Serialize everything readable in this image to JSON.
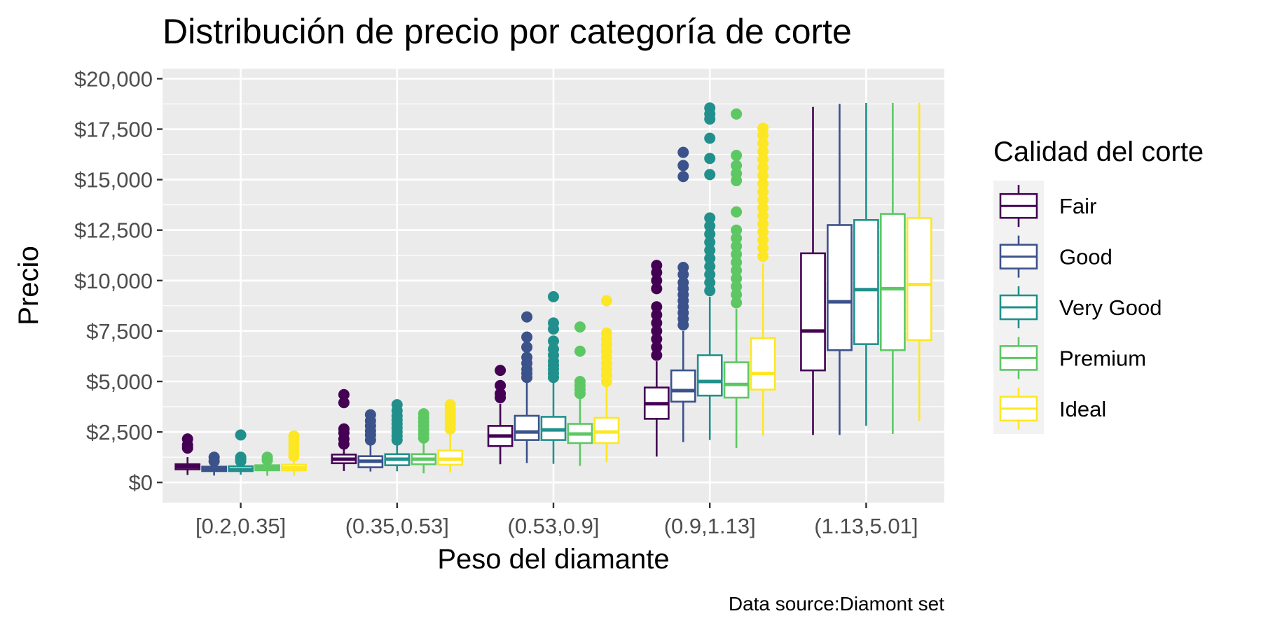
{
  "chart_data": {
    "type": "boxplot",
    "title": "Distribución de precio por categoría de corte",
    "xlabel": "Peso del diamante",
    "ylabel": "Precio",
    "caption": "Data source:Diamont set",
    "legend_title": "Calidad del corte",
    "legend_position": "right",
    "grid": true,
    "ylim": [
      -1000,
      20500
    ],
    "y_ticks": [
      0,
      2500,
      5000,
      7500,
      10000,
      12500,
      15000,
      17500,
      20000
    ],
    "y_tick_labels": [
      "$0",
      "$2,500",
      "$5,000",
      "$7,500",
      "$10,000",
      "$12,500",
      "$15,000",
      "$17,500",
      "$20,000"
    ],
    "categories": [
      "[0.2,0.35]",
      "(0.35,0.53]",
      "(0.53,0.9]",
      "(0.9,1.13]",
      "(1.13,5.01]"
    ],
    "series": [
      {
        "name": "Fair",
        "color": "#440154",
        "boxes": [
          {
            "min": 370,
            "q1": 650,
            "median": 780,
            "q3": 900,
            "max": 1250,
            "outliers": [
              1700,
              1850,
              2150
            ]
          },
          {
            "min": 560,
            "q1": 950,
            "median": 1150,
            "q3": 1380,
            "max": 1800,
            "outliers": [
              1900,
              2150,
              2450,
              2650,
              3950,
              4350
            ]
          },
          {
            "min": 900,
            "q1": 1800,
            "median": 2300,
            "q3": 2800,
            "max": 3900,
            "outliers": [
              4200,
              4400,
              4800,
              5550
            ]
          },
          {
            "min": 1280,
            "q1": 3150,
            "median": 3900,
            "q3": 4700,
            "max": 6000,
            "outliers": [
              6300,
              6700,
              7100,
              7500,
              7900,
              8300,
              8700,
              9600,
              10000,
              10400,
              10750
            ]
          },
          {
            "min": 2350,
            "q1": 5550,
            "median": 7500,
            "q3": 11350,
            "max": 18600,
            "outliers": []
          }
        ]
      },
      {
        "name": "Good",
        "color": "#3b528b",
        "boxes": [
          {
            "min": 340,
            "q1": 560,
            "median": 650,
            "q3": 780,
            "max": 1000,
            "outliers": [
              1050,
              1250
            ]
          },
          {
            "min": 540,
            "q1": 750,
            "median": 1050,
            "q3": 1300,
            "max": 2000,
            "outliers": [
              2100,
              2350,
              2550,
              2800,
              3050,
              3350
            ]
          },
          {
            "min": 960,
            "q1": 2100,
            "median": 2500,
            "q3": 3300,
            "max": 5000,
            "outliers": [
              5200,
              5400,
              5600,
              5900,
              6200,
              6700,
              7200,
              8200
            ]
          },
          {
            "min": 2000,
            "q1": 4000,
            "median": 4550,
            "q3": 5550,
            "max": 7500,
            "outliers": [
              7800,
              8100,
              8400,
              8700,
              9000,
              9300,
              9600,
              9900,
              10300,
              10650,
              15150,
              15700,
              16350
            ]
          },
          {
            "min": 2350,
            "q1": 6550,
            "median": 8950,
            "q3": 12750,
            "max": 18750,
            "outliers": []
          }
        ]
      },
      {
        "name": "Very Good",
        "color": "#21908c",
        "boxes": [
          {
            "min": 380,
            "q1": 560,
            "median": 640,
            "q3": 800,
            "max": 1000,
            "outliers": [
              1050,
              1150,
              1250,
              2350
            ]
          },
          {
            "min": 550,
            "q1": 850,
            "median": 1150,
            "q3": 1400,
            "max": 2000,
            "outliers": [
              2100,
              2300,
              2500,
              2700,
              2900,
              3100,
              3300,
              3550,
              3850
            ]
          },
          {
            "min": 920,
            "q1": 2100,
            "median": 2600,
            "q3": 3250,
            "max": 5000,
            "outliers": [
              5200,
              5400,
              5600,
              5800,
              6000,
              6300,
              6600,
              7000,
              7600,
              7900,
              9200
            ]
          },
          {
            "min": 2100,
            "q1": 4300,
            "median": 5000,
            "q3": 6300,
            "max": 9200,
            "outliers": [
              9500,
              9900,
              10300,
              10700,
              11100,
              11500,
              11900,
              12300,
              12700,
              13100,
              15250,
              16050,
              17050,
              18000,
              18250,
              18550
            ]
          },
          {
            "min": 2800,
            "q1": 6850,
            "median": 9550,
            "q3": 13000,
            "max": 18800,
            "outliers": []
          }
        ]
      },
      {
        "name": "Premium",
        "color": "#5dc863",
        "boxes": [
          {
            "min": 330,
            "q1": 600,
            "median": 720,
            "q3": 850,
            "max": 1000,
            "outliers": [
              1100,
              1250
            ]
          },
          {
            "min": 450,
            "q1": 900,
            "median": 1150,
            "q3": 1400,
            "max": 2100,
            "outliers": [
              2200,
              2400,
              2600,
              2800,
              3000,
              3200,
              3400
            ]
          },
          {
            "min": 820,
            "q1": 1950,
            "median": 2400,
            "q3": 2900,
            "max": 4250,
            "outliers": [
              4400,
              4600,
              4800,
              5000,
              6500,
              7700
            ]
          },
          {
            "min": 1700,
            "q1": 4200,
            "median": 4850,
            "q3": 5950,
            "max": 8600,
            "outliers": [
              8900,
              9300,
              9700,
              10100,
              10500,
              10900,
              11300,
              11700,
              12100,
              12500,
              13400,
              14950,
              15300,
              15700,
              16200,
              18250
            ]
          },
          {
            "min": 2400,
            "q1": 6550,
            "median": 9600,
            "q3": 13300,
            "max": 18800,
            "outliers": []
          }
        ]
      },
      {
        "name": "Ideal",
        "color": "#fde725",
        "boxes": [
          {
            "min": 330,
            "q1": 600,
            "median": 720,
            "q3": 880,
            "max": 1200,
            "outliers": [
              1300,
              1500,
              1700,
              1900,
              2100,
              2300
            ]
          },
          {
            "min": 500,
            "q1": 880,
            "median": 1150,
            "q3": 1580,
            "max": 2550,
            "outliers": [
              2650,
              2850,
              3050,
              3250,
              3450,
              3650,
              3850
            ]
          },
          {
            "min": 1000,
            "q1": 1950,
            "median": 2500,
            "q3": 3200,
            "max": 4850,
            "outliers": [
              5000,
              5300,
              5600,
              5900,
              6200,
              6500,
              6800,
              7100,
              7400,
              9000
            ]
          },
          {
            "min": 2300,
            "q1": 4600,
            "median": 5400,
            "q3": 7150,
            "max": 10850,
            "outliers": [
              11200,
              11600,
              12000,
              12400,
              12800,
              13200,
              13600,
              14000,
              14400,
              14800,
              15200,
              15600,
              16000,
              16400,
              16800,
              17200,
              17550
            ]
          },
          {
            "min": 3050,
            "q1": 7050,
            "median": 9800,
            "q3": 13100,
            "max": 18800,
            "outliers": []
          }
        ]
      }
    ]
  }
}
